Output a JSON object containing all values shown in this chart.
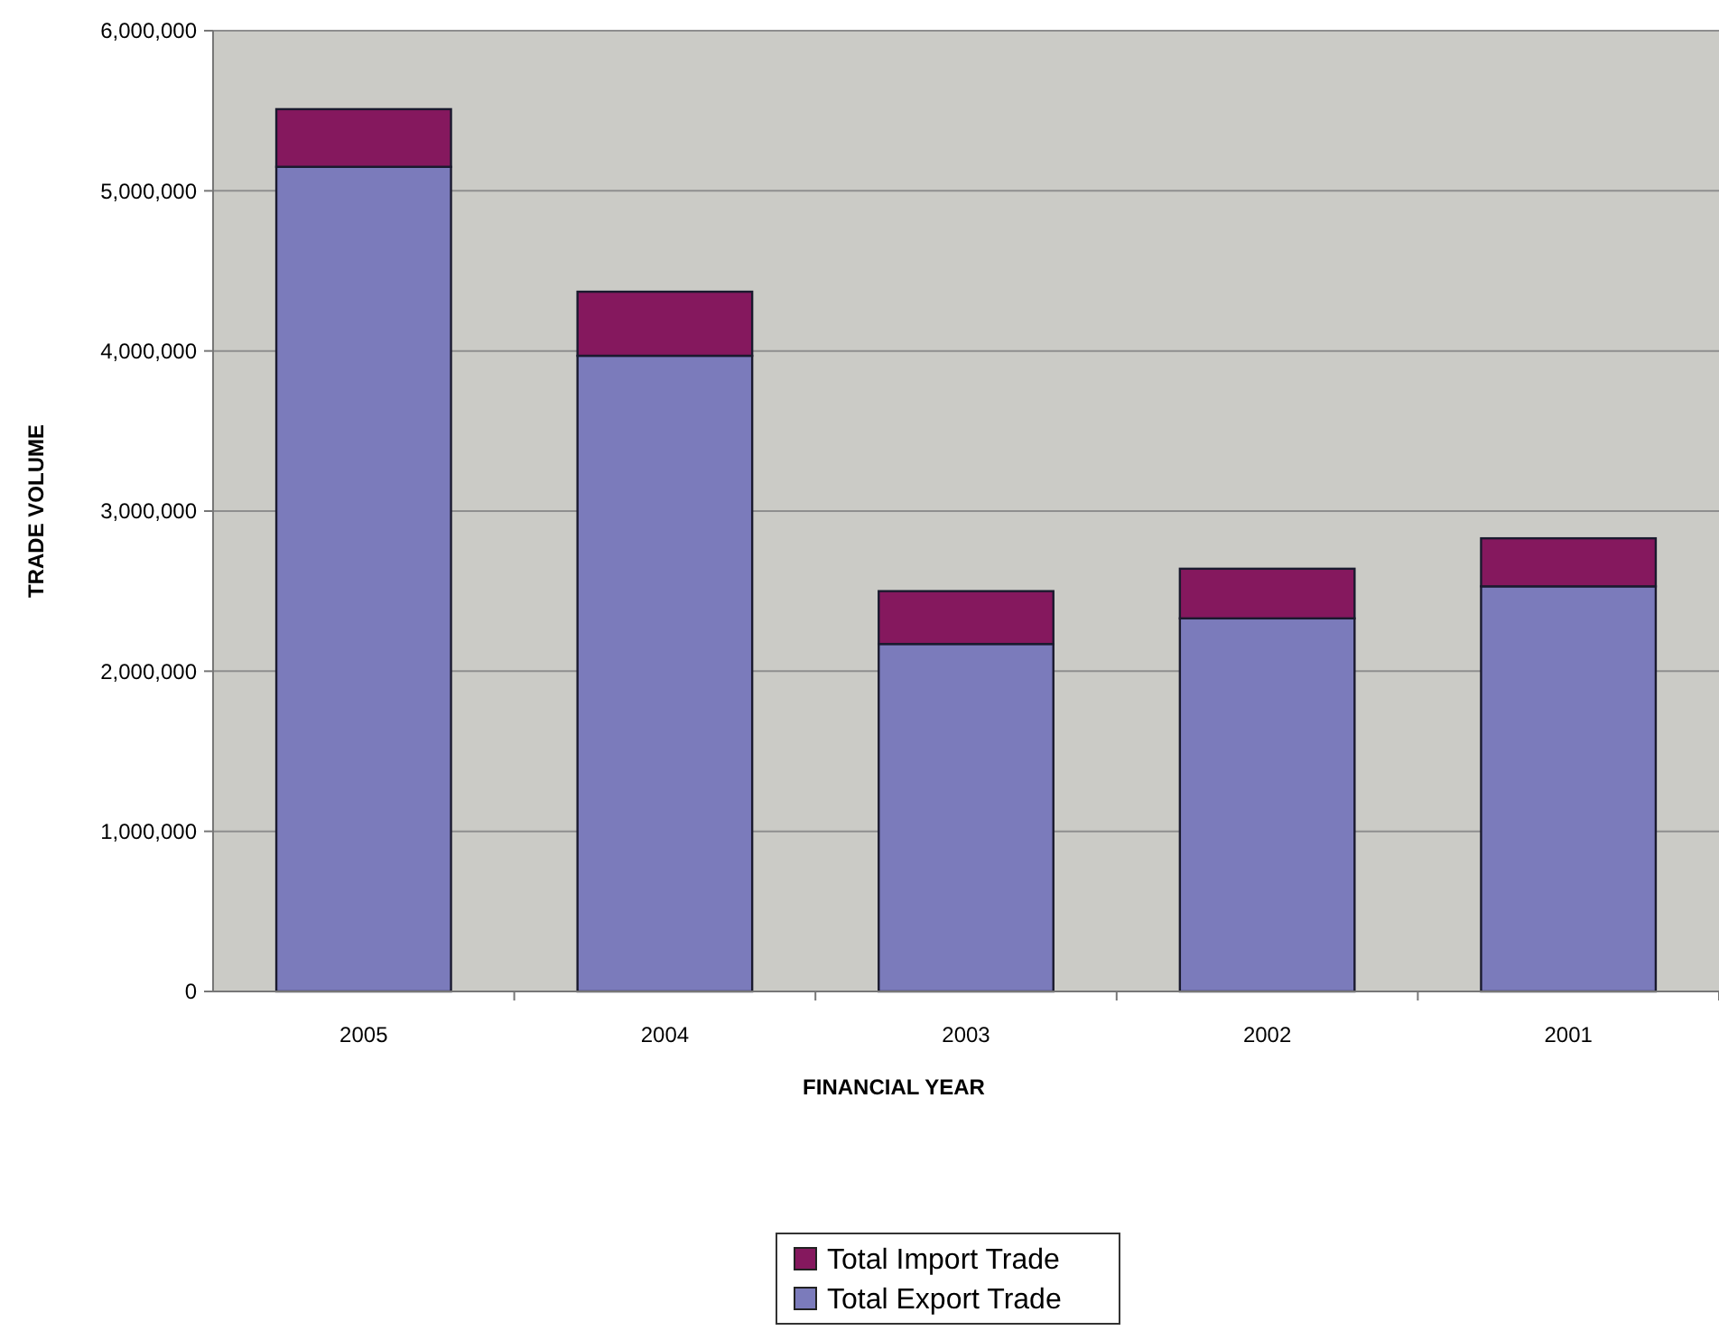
{
  "chart_data": {
    "type": "bar",
    "stacked": true,
    "xlabel": "FINANCIAL YEAR",
    "ylabel": "TRADE VOLUME",
    "categories": [
      "2005",
      "2004",
      "2003",
      "2002",
      "2001"
    ],
    "series": [
      {
        "name": "Total Export Trade",
        "color": "#7b7bbb",
        "values": [
          5150000,
          3970000,
          2170000,
          2330000,
          2530000
        ]
      },
      {
        "name": "Total Import Trade",
        "color": "#85185e",
        "values": [
          360000,
          400000,
          330000,
          310000,
          300000
        ]
      }
    ],
    "ylim": [
      0,
      6000000
    ],
    "yticks": [
      {
        "value": 0,
        "label": "0"
      },
      {
        "value": 1000000,
        "label": "1,000,000"
      },
      {
        "value": 2000000,
        "label": "2,000,000"
      },
      {
        "value": 3000000,
        "label": "3,000,000"
      },
      {
        "value": 4000000,
        "label": "4,000,000"
      },
      {
        "value": 5000000,
        "label": "5,000,000"
      },
      {
        "value": 6000000,
        "label": "6,000,000"
      }
    ],
    "grid": "y",
    "legend": "bottom"
  }
}
